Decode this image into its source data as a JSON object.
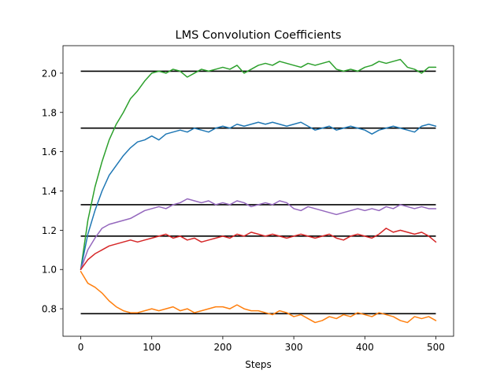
{
  "chart_data": {
    "type": "line",
    "title": "LMS Convolution Coefficients",
    "xlabel": "Steps",
    "ylabel": "",
    "xlim": [
      -25,
      525
    ],
    "ylim": [
      0.66,
      2.14
    ],
    "grid": false,
    "legend": "none",
    "xticks": [
      0,
      100,
      200,
      300,
      400,
      500
    ],
    "yticks": [
      0.8,
      1.0,
      1.2,
      1.4,
      1.6,
      1.8,
      2.0
    ],
    "xtick_labels": [
      "0",
      "100",
      "200",
      "300",
      "400",
      "500"
    ],
    "ytick_labels": [
      "0.8",
      "1.0",
      "1.2",
      "1.4",
      "1.6",
      "1.8",
      "2.0"
    ],
    "reference_lines": [
      {
        "color": "#000000",
        "x": [
          0,
          500
        ],
        "y": 2.01
      },
      {
        "color": "#000000",
        "x": [
          0,
          500
        ],
        "y": 1.72
      },
      {
        "color": "#000000",
        "x": [
          0,
          500
        ],
        "y": 1.33
      },
      {
        "color": "#000000",
        "x": [
          0,
          500
        ],
        "y": 1.17
      },
      {
        "color": "#000000",
        "x": [
          0,
          500
        ],
        "y": 0.775
      }
    ],
    "series": [
      {
        "color": "#2ca02c",
        "x": [
          0,
          10,
          20,
          30,
          40,
          50,
          60,
          70,
          80,
          90,
          100,
          110,
          120,
          130,
          140,
          150,
          160,
          170,
          180,
          190,
          200,
          210,
          220,
          230,
          240,
          250,
          260,
          270,
          280,
          290,
          300,
          310,
          320,
          330,
          340,
          350,
          360,
          370,
          380,
          390,
          400,
          410,
          420,
          430,
          440,
          450,
          460,
          470,
          480,
          490,
          500
        ],
        "y": [
          1.0,
          1.25,
          1.42,
          1.55,
          1.66,
          1.74,
          1.8,
          1.87,
          1.91,
          1.96,
          2.0,
          2.01,
          2.0,
          2.02,
          2.01,
          1.98,
          2.0,
          2.02,
          2.01,
          2.02,
          2.03,
          2.02,
          2.04,
          2.0,
          2.02,
          2.04,
          2.05,
          2.04,
          2.06,
          2.05,
          2.04,
          2.03,
          2.05,
          2.04,
          2.05,
          2.06,
          2.02,
          2.01,
          2.02,
          2.01,
          2.03,
          2.04,
          2.06,
          2.05,
          2.06,
          2.07,
          2.03,
          2.02,
          2.0,
          2.03,
          2.03
        ]
      },
      {
        "color": "#1f77b4",
        "x": [
          0,
          10,
          20,
          30,
          40,
          50,
          60,
          70,
          80,
          90,
          100,
          110,
          120,
          130,
          140,
          150,
          160,
          170,
          180,
          190,
          200,
          210,
          220,
          230,
          240,
          250,
          260,
          270,
          280,
          290,
          300,
          310,
          320,
          330,
          340,
          350,
          360,
          370,
          380,
          390,
          400,
          410,
          420,
          430,
          440,
          450,
          460,
          470,
          480,
          490,
          500
        ],
        "y": [
          1.0,
          1.18,
          1.3,
          1.4,
          1.48,
          1.53,
          1.58,
          1.62,
          1.65,
          1.66,
          1.68,
          1.66,
          1.69,
          1.7,
          1.71,
          1.7,
          1.72,
          1.71,
          1.7,
          1.72,
          1.73,
          1.72,
          1.74,
          1.73,
          1.74,
          1.75,
          1.74,
          1.75,
          1.74,
          1.73,
          1.74,
          1.75,
          1.73,
          1.71,
          1.72,
          1.73,
          1.71,
          1.72,
          1.73,
          1.72,
          1.71,
          1.69,
          1.71,
          1.72,
          1.73,
          1.72,
          1.71,
          1.7,
          1.73,
          1.74,
          1.73
        ]
      },
      {
        "color": "#9467bd",
        "x": [
          0,
          10,
          20,
          30,
          40,
          50,
          60,
          70,
          80,
          90,
          100,
          110,
          120,
          130,
          140,
          150,
          160,
          170,
          180,
          190,
          200,
          210,
          220,
          230,
          240,
          250,
          260,
          270,
          280,
          290,
          300,
          310,
          320,
          330,
          340,
          350,
          360,
          370,
          380,
          390,
          400,
          410,
          420,
          430,
          440,
          450,
          460,
          470,
          480,
          490,
          500
        ],
        "y": [
          1.0,
          1.1,
          1.16,
          1.21,
          1.23,
          1.24,
          1.25,
          1.26,
          1.28,
          1.3,
          1.31,
          1.32,
          1.31,
          1.33,
          1.34,
          1.36,
          1.35,
          1.34,
          1.35,
          1.33,
          1.34,
          1.33,
          1.35,
          1.34,
          1.32,
          1.33,
          1.34,
          1.33,
          1.35,
          1.34,
          1.31,
          1.3,
          1.32,
          1.31,
          1.3,
          1.29,
          1.28,
          1.29,
          1.3,
          1.31,
          1.3,
          1.31,
          1.3,
          1.32,
          1.31,
          1.33,
          1.32,
          1.31,
          1.32,
          1.31,
          1.31
        ]
      },
      {
        "color": "#d62728",
        "x": [
          0,
          10,
          20,
          30,
          40,
          50,
          60,
          70,
          80,
          90,
          100,
          110,
          120,
          130,
          140,
          150,
          160,
          170,
          180,
          190,
          200,
          210,
          220,
          230,
          240,
          250,
          260,
          270,
          280,
          290,
          300,
          310,
          320,
          330,
          340,
          350,
          360,
          370,
          380,
          390,
          400,
          410,
          420,
          430,
          440,
          450,
          460,
          470,
          480,
          490,
          500
        ],
        "y": [
          1.0,
          1.05,
          1.08,
          1.1,
          1.12,
          1.13,
          1.14,
          1.15,
          1.14,
          1.15,
          1.16,
          1.17,
          1.18,
          1.16,
          1.17,
          1.15,
          1.16,
          1.14,
          1.15,
          1.16,
          1.17,
          1.16,
          1.18,
          1.17,
          1.19,
          1.18,
          1.17,
          1.18,
          1.17,
          1.16,
          1.17,
          1.18,
          1.17,
          1.16,
          1.17,
          1.18,
          1.16,
          1.15,
          1.17,
          1.18,
          1.17,
          1.16,
          1.18,
          1.21,
          1.19,
          1.2,
          1.19,
          1.18,
          1.19,
          1.17,
          1.14
        ]
      },
      {
        "color": "#ff7f0e",
        "x": [
          0,
          10,
          20,
          30,
          40,
          50,
          60,
          70,
          80,
          90,
          100,
          110,
          120,
          130,
          140,
          150,
          160,
          170,
          180,
          190,
          200,
          210,
          220,
          230,
          240,
          250,
          260,
          270,
          280,
          290,
          300,
          310,
          320,
          330,
          340,
          350,
          360,
          370,
          380,
          390,
          400,
          410,
          420,
          430,
          440,
          450,
          460,
          470,
          480,
          490,
          500
        ],
        "y": [
          0.99,
          0.93,
          0.91,
          0.88,
          0.84,
          0.81,
          0.79,
          0.78,
          0.78,
          0.79,
          0.8,
          0.79,
          0.8,
          0.81,
          0.79,
          0.8,
          0.78,
          0.79,
          0.8,
          0.81,
          0.81,
          0.8,
          0.82,
          0.8,
          0.79,
          0.79,
          0.78,
          0.77,
          0.79,
          0.78,
          0.76,
          0.77,
          0.75,
          0.73,
          0.74,
          0.76,
          0.75,
          0.77,
          0.76,
          0.78,
          0.77,
          0.76,
          0.78,
          0.77,
          0.76,
          0.74,
          0.73,
          0.76,
          0.75,
          0.76,
          0.74
        ]
      }
    ]
  }
}
